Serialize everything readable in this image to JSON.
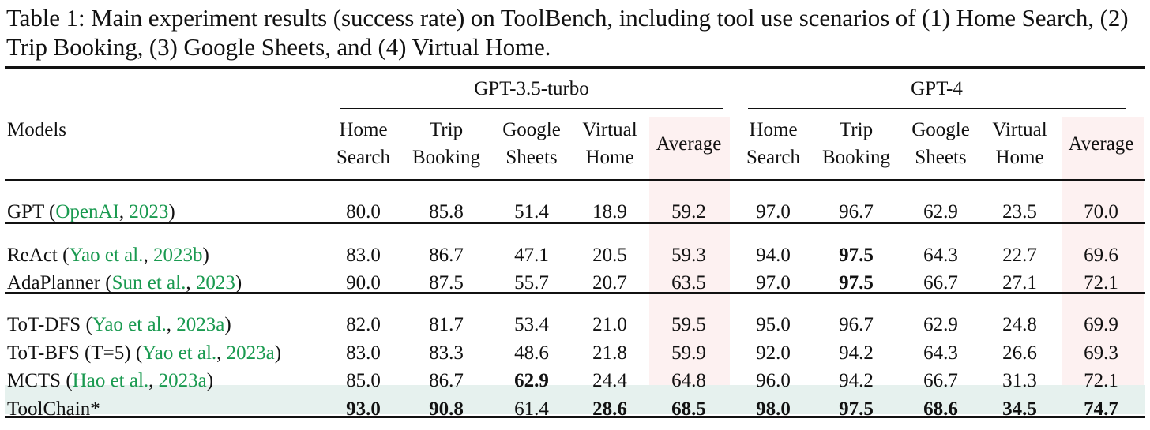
{
  "caption": "Table 1: Main experiment results (success rate) on ToolBench, including tool use scenarios of (1) Home Search, (2) Trip Booking, (3) Google Sheets, and (4) Virtual Home.",
  "groups": [
    "GPT-3.5-turbo",
    "GPT-4"
  ],
  "models_header": "Models",
  "columns": [
    [
      "Home",
      "Search"
    ],
    [
      "Trip",
      "Booking"
    ],
    [
      "Google",
      "Sheets"
    ],
    [
      "Virtual",
      "Home"
    ],
    [
      "Average"
    ],
    [
      "Home",
      "Search"
    ],
    [
      "Trip",
      "Booking"
    ],
    [
      "Google",
      "Sheets"
    ],
    [
      "Virtual",
      "Home"
    ],
    [
      "Average"
    ]
  ],
  "rows": [
    {
      "name": "GPT",
      "cite_author": "OpenAI",
      "cite_year": "2023",
      "values": [
        "80.0",
        "85.8",
        "51.4",
        "18.9",
        "59.2",
        "97.0",
        "96.7",
        "62.9",
        "23.5",
        "70.0"
      ],
      "bold": []
    },
    {
      "name": "ReAct",
      "cite_author": "Yao et al.",
      "cite_year": "2023b",
      "values": [
        "83.0",
        "86.7",
        "47.1",
        "20.5",
        "59.3",
        "94.0",
        "97.5",
        "64.3",
        "22.7",
        "69.6"
      ],
      "bold": [
        6
      ]
    },
    {
      "name": "AdaPlanner",
      "cite_author": "Sun et al.",
      "cite_year": "2023",
      "values": [
        "90.0",
        "87.5",
        "55.7",
        "20.7",
        "63.5",
        "97.0",
        "97.5",
        "66.7",
        "27.1",
        "72.1"
      ],
      "bold": [
        6
      ]
    },
    {
      "name": "ToT-DFS",
      "cite_author": "Yao et al.",
      "cite_year": "2023a",
      "values": [
        "82.0",
        "81.7",
        "53.4",
        "21.0",
        "59.5",
        "95.0",
        "96.7",
        "62.9",
        "24.8",
        "69.9"
      ],
      "bold": []
    },
    {
      "name": "ToT-BFS (T=5)",
      "cite_author": "Yao et al.",
      "cite_year": "2023a",
      "values": [
        "83.0",
        "83.3",
        "48.6",
        "21.8",
        "59.9",
        "92.0",
        "94.2",
        "64.3",
        "26.6",
        "69.3"
      ],
      "bold": []
    },
    {
      "name": "MCTS",
      "cite_author": "Hao et al.",
      "cite_year": "2023a",
      "values": [
        "85.0",
        "86.7",
        "62.9",
        "24.4",
        "64.8",
        "96.0",
        "94.2",
        "66.7",
        "31.3",
        "72.1"
      ],
      "bold": [
        2
      ]
    },
    {
      "name": "ToolChain*",
      "cite_author": "",
      "cite_year": "",
      "values": [
        "93.0",
        "90.8",
        "61.4",
        "28.6",
        "68.5",
        "98.0",
        "97.5",
        "68.6",
        "34.5",
        "74.7"
      ],
      "bold": [
        0,
        1,
        3,
        4,
        5,
        6,
        7,
        8,
        9
      ]
    }
  ]
}
